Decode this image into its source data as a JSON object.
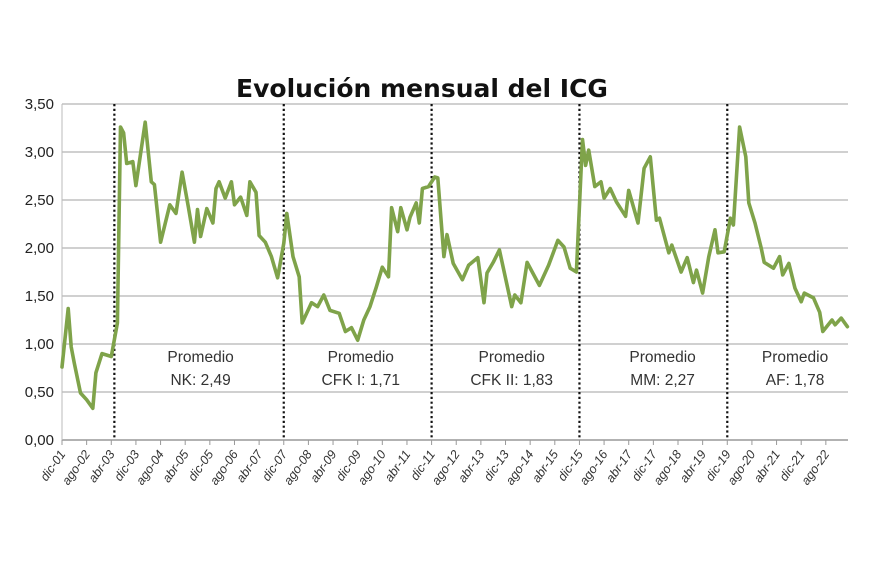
{
  "chart_data": {
    "type": "line",
    "title": "Evolución mensual del ICG",
    "xlabel": "",
    "ylabel": "",
    "ylim": [
      0,
      3.5
    ],
    "yticks": [
      "0,00",
      "0,50",
      "1,00",
      "1,50",
      "2,00",
      "2,50",
      "3,00",
      "3,50"
    ],
    "grid": true,
    "x_unit": "months since dic-01",
    "xlim": [
      0,
      255
    ],
    "xtick_labels": [
      "dic-01",
      "ago-02",
      "abr-03",
      "dic-03",
      "ago-04",
      "abr-05",
      "dic-05",
      "ago-06",
      "abr-07",
      "dic-07",
      "ago-08",
      "abr-09",
      "dic-09",
      "ago-10",
      "abr-11",
      "dic-11",
      "ago-12",
      "abr-13",
      "dic-13",
      "ago-14",
      "abr-15",
      "dic-15",
      "ago-16",
      "abr-17",
      "dic-17",
      "ago-18",
      "abr-19",
      "dic-19",
      "ago-20",
      "abr-21",
      "dic-21",
      "ago-22"
    ],
    "xtick_step_months": 8,
    "series": [
      {
        "name": "ICG",
        "color": "#7fa34a",
        "points": [
          [
            0,
            0.76
          ],
          [
            2,
            1.37
          ],
          [
            3,
            0.97
          ],
          [
            4,
            0.8
          ],
          [
            6,
            0.49
          ],
          [
            8,
            0.42
          ],
          [
            10,
            0.33
          ],
          [
            11,
            0.7
          ],
          [
            13,
            0.9
          ],
          [
            16,
            0.87
          ],
          [
            18,
            1.22
          ],
          [
            19,
            3.26
          ],
          [
            20,
            3.2
          ],
          [
            21,
            2.88
          ],
          [
            23,
            2.9
          ],
          [
            24,
            2.65
          ],
          [
            27,
            3.31
          ],
          [
            29,
            2.69
          ],
          [
            30,
            2.66
          ],
          [
            32,
            2.06
          ],
          [
            35,
            2.45
          ],
          [
            37,
            2.36
          ],
          [
            39,
            2.79
          ],
          [
            41,
            2.43
          ],
          [
            43,
            2.06
          ],
          [
            44,
            2.4
          ],
          [
            45,
            2.12
          ],
          [
            47,
            2.41
          ],
          [
            49,
            2.26
          ],
          [
            50,
            2.62
          ],
          [
            51,
            2.69
          ],
          [
            53,
            2.52
          ],
          [
            55,
            2.69
          ],
          [
            56,
            2.45
          ],
          [
            58,
            2.53
          ],
          [
            60,
            2.34
          ],
          [
            61,
            2.69
          ],
          [
            63,
            2.58
          ],
          [
            64,
            2.13
          ],
          [
            66,
            2.06
          ],
          [
            68,
            1.91
          ],
          [
            70,
            1.69
          ],
          [
            72,
            2.05
          ],
          [
            73,
            2.36
          ],
          [
            75,
            1.91
          ],
          [
            77,
            1.7
          ],
          [
            78,
            1.22
          ],
          [
            81,
            1.43
          ],
          [
            83,
            1.39
          ],
          [
            85,
            1.51
          ],
          [
            87,
            1.35
          ],
          [
            90,
            1.32
          ],
          [
            92,
            1.13
          ],
          [
            94,
            1.17
          ],
          [
            96,
            1.04
          ],
          [
            98,
            1.25
          ],
          [
            100,
            1.39
          ],
          [
            102,
            1.59
          ],
          [
            104,
            1.8
          ],
          [
            106,
            1.7
          ],
          [
            107,
            2.42
          ],
          [
            109,
            2.17
          ],
          [
            110,
            2.42
          ],
          [
            112,
            2.19
          ],
          [
            113,
            2.32
          ],
          [
            115,
            2.47
          ],
          [
            116,
            2.26
          ],
          [
            117,
            2.62
          ],
          [
            119,
            2.64
          ],
          [
            121,
            2.74
          ],
          [
            122,
            2.73
          ],
          [
            124,
            1.91
          ],
          [
            125,
            2.14
          ],
          [
            127,
            1.84
          ],
          [
            130,
            1.67
          ],
          [
            132,
            1.82
          ],
          [
            135,
            1.9
          ],
          [
            137,
            1.43
          ],
          [
            138,
            1.74
          ],
          [
            140,
            1.85
          ],
          [
            142,
            1.98
          ],
          [
            146,
            1.39
          ],
          [
            147,
            1.51
          ],
          [
            149,
            1.43
          ],
          [
            151,
            1.85
          ],
          [
            155,
            1.61
          ],
          [
            158,
            1.82
          ],
          [
            161,
            2.08
          ],
          [
            163,
            2.01
          ],
          [
            165,
            1.79
          ],
          [
            167,
            1.75
          ],
          [
            169,
            3.13
          ],
          [
            170,
            2.86
          ],
          [
            171,
            3.02
          ],
          [
            173,
            2.64
          ],
          [
            175,
            2.69
          ],
          [
            176,
            2.52
          ],
          [
            178,
            2.62
          ],
          [
            180,
            2.48
          ],
          [
            183,
            2.33
          ],
          [
            184,
            2.6
          ],
          [
            187,
            2.26
          ],
          [
            189,
            2.83
          ],
          [
            191,
            2.95
          ],
          [
            193,
            2.29
          ],
          [
            194,
            2.31
          ],
          [
            197,
            1.95
          ],
          [
            198,
            2.03
          ],
          [
            201,
            1.75
          ],
          [
            203,
            1.9
          ],
          [
            205,
            1.64
          ],
          [
            206,
            1.77
          ],
          [
            208,
            1.53
          ],
          [
            210,
            1.91
          ],
          [
            212,
            2.19
          ],
          [
            213,
            1.95
          ],
          [
            215,
            1.96
          ],
          [
            217,
            2.31
          ],
          [
            218,
            2.24
          ],
          [
            220,
            3.26
          ],
          [
            222,
            2.95
          ],
          [
            223,
            2.47
          ],
          [
            225,
            2.26
          ],
          [
            227,
            2.0
          ],
          [
            228,
            1.85
          ],
          [
            231,
            1.79
          ],
          [
            233,
            1.91
          ],
          [
            234,
            1.72
          ],
          [
            236,
            1.84
          ],
          [
            238,
            1.58
          ],
          [
            240,
            1.44
          ],
          [
            241,
            1.53
          ],
          [
            244,
            1.48
          ],
          [
            246,
            1.33
          ],
          [
            247,
            1.13
          ],
          [
            250,
            1.25
          ],
          [
            251,
            1.2
          ],
          [
            253,
            1.27
          ],
          [
            255,
            1.18
          ]
        ]
      }
    ],
    "dividers_month": [
      17,
      72,
      120,
      168,
      216
    ],
    "annotations": [
      {
        "label": "Promedio",
        "value": "NK: 2,49",
        "x_month": 45
      },
      {
        "label": "Promedio",
        "value": "CFK I: 1,71",
        "x_month": 97
      },
      {
        "label": "Promedio",
        "value": "CFK II: 1,83",
        "x_month": 146
      },
      {
        "label": "Promedio",
        "value": "MM: 2,27",
        "x_month": 195
      },
      {
        "label": "Promedio",
        "value": "AF: 1,78",
        "x_month": 238
      }
    ]
  }
}
